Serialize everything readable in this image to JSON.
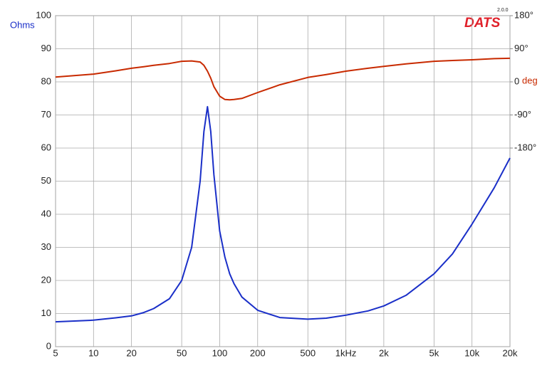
{
  "chart_data": {
    "type": "line",
    "logo": "DATS",
    "version": "2.0.0",
    "ylabel": "Ohms",
    "y2label": "deg",
    "x": [
      5,
      10,
      15,
      20,
      25,
      30,
      40,
      50,
      60,
      70,
      75,
      80,
      85,
      90,
      100,
      110,
      120,
      130,
      150,
      200,
      300,
      500,
      700,
      1000,
      1500,
      2000,
      3000,
      5000,
      7000,
      10000,
      15000,
      20000
    ],
    "series": [
      {
        "name": "Ohms",
        "color": "#1a2fc8",
        "axis": "y",
        "values": [
          7.5,
          8.0,
          8.7,
          9.3,
          10.3,
          11.5,
          14.5,
          20,
          30,
          50,
          65,
          72.5,
          65,
          52,
          35,
          27,
          22,
          19,
          15,
          11,
          8.8,
          8.3,
          8.6,
          9.5,
          10.8,
          12.3,
          15.5,
          22,
          28,
          37,
          48,
          57
        ]
      },
      {
        "name": "deg",
        "color": "#c82a00",
        "axis": "y2",
        "values": [
          13,
          21,
          30,
          37,
          41,
          45,
          50,
          56,
          57,
          54,
          45,
          29,
          10,
          -13,
          -39,
          -48,
          -49,
          -48,
          -45,
          -29,
          -8,
          12,
          20,
          29,
          37,
          42,
          49,
          56,
          58,
          60,
          63,
          64
        ]
      }
    ],
    "xlog": true,
    "xlim": [
      5,
      20000
    ],
    "xticks": [
      5,
      10,
      20,
      50,
      100,
      200,
      500,
      {
        "value": 1000,
        "label": "1kHz"
      },
      {
        "value": 2000,
        "label": "2k"
      },
      {
        "value": 5000,
        "label": "5k"
      },
      {
        "value": 10000,
        "label": "10k"
      },
      {
        "value": 20000,
        "label": "20k"
      }
    ],
    "ylim": [
      0,
      100
    ],
    "yticks": [
      0,
      10,
      20,
      30,
      40,
      50,
      60,
      70,
      80,
      90,
      100
    ],
    "y2lim": [
      -720,
      180
    ],
    "y2ticks": [
      {
        "value": -180,
        "label": "-180°"
      },
      {
        "value": -90,
        "label": "-90°"
      },
      0,
      {
        "value": 90,
        "label": "90°"
      },
      {
        "value": 180,
        "label": "180°"
      }
    ],
    "grid": true
  }
}
